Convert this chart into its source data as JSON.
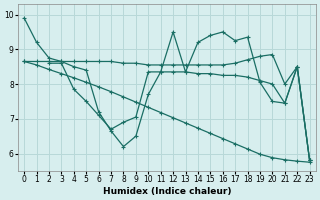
{
  "xlabel": "Humidex (Indice chaleur)",
  "background_color": "#d7eeee",
  "grid_color": "#b8d8d8",
  "line_color": "#1a6e64",
  "xlim": [
    -0.5,
    23.5
  ],
  "ylim": [
    5.5,
    10.3
  ],
  "yticks": [
    6,
    7,
    8,
    9,
    10
  ],
  "xticks": [
    0,
    1,
    2,
    3,
    4,
    5,
    6,
    7,
    8,
    9,
    10,
    11,
    12,
    13,
    14,
    15,
    16,
    17,
    18,
    19,
    20,
    21,
    22,
    23
  ],
  "line_zigzag": [
    9.9,
    9.2,
    8.75,
    8.65,
    8.5,
    8.4,
    7.2,
    6.65,
    6.2,
    6.5,
    7.7,
    8.35,
    9.5,
    8.35,
    9.2,
    9.4,
    9.5,
    9.25,
    9.35,
    8.05,
    7.5,
    7.45,
    8.5,
    5.8
  ],
  "line_flat_upper": [
    8.65,
    8.65,
    8.65,
    8.65,
    8.65,
    8.65,
    8.65,
    8.65,
    8.6,
    8.6,
    8.55,
    8.55,
    8.55,
    8.55,
    8.55,
    8.55,
    8.55,
    8.6,
    8.7,
    8.8,
    8.85,
    8.0,
    8.5,
    5.8
  ],
  "line_middle": [
    null,
    null,
    8.6,
    8.6,
    7.85,
    7.5,
    7.1,
    6.7,
    6.9,
    7.05,
    8.35,
    8.35,
    8.35,
    8.35,
    8.3,
    8.3,
    8.25,
    8.25,
    8.2,
    8.1,
    8.0,
    7.45,
    8.5,
    5.8
  ],
  "line_descend": [
    8.65,
    8.55,
    8.42,
    8.3,
    8.18,
    8.05,
    7.92,
    7.78,
    7.63,
    7.48,
    7.33,
    7.18,
    7.03,
    6.88,
    6.73,
    6.58,
    6.43,
    6.28,
    6.13,
    5.98,
    5.88,
    5.82,
    5.78,
    5.75
  ]
}
